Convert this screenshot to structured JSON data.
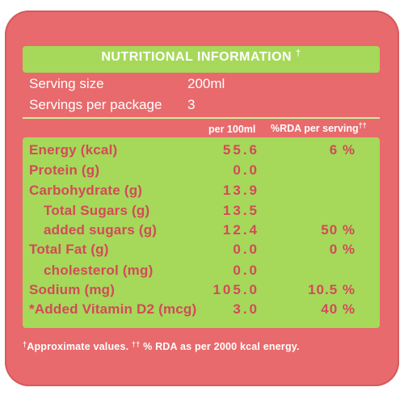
{
  "header": {
    "title": "NUTRITIONAL INFORMATION",
    "title_mark": "†"
  },
  "serving": {
    "size_label": "Serving size",
    "size_value": "200ml",
    "per_package_label": "Servings per package",
    "per_package_value": "3"
  },
  "columns": {
    "per100": "per 100ml",
    "rda": "%RDA per serving",
    "rda_mark": "††"
  },
  "rows": [
    {
      "label": "Energy (kcal)",
      "per100": "55.6",
      "rda": "6 %"
    },
    {
      "label": "Protein (g)",
      "per100": "0.0",
      "rda": ""
    },
    {
      "label": "Carbohydrate (g)",
      "per100": "13.9",
      "rda": ""
    },
    {
      "label": "Total Sugars (g)",
      "per100": "13.5",
      "rda": ""
    },
    {
      "label": "added sugars (g)",
      "per100": "12.4",
      "rda": "50 %"
    },
    {
      "label": "Total Fat (g)",
      "per100": "0.0",
      "rda": "0 %"
    },
    {
      "label": "cholesterol (mg)",
      "per100": "0.0",
      "rda": ""
    },
    {
      "label": "Sodium (mg)",
      "per100": "105.0",
      "rda": "10.5 %"
    },
    {
      "label": "*Added Vitamin D2 (mcg)",
      "per100": "3.0",
      "rda": "40 %"
    }
  ],
  "footer": {
    "mark1": "†",
    "text1": "Approximate values.",
    "mark2": "††",
    "text2": "% RDA as per 2000 kcal energy."
  },
  "colors": {
    "panel": "#e86a6c",
    "band": "#a6d85a",
    "text": "#d34a58"
  }
}
